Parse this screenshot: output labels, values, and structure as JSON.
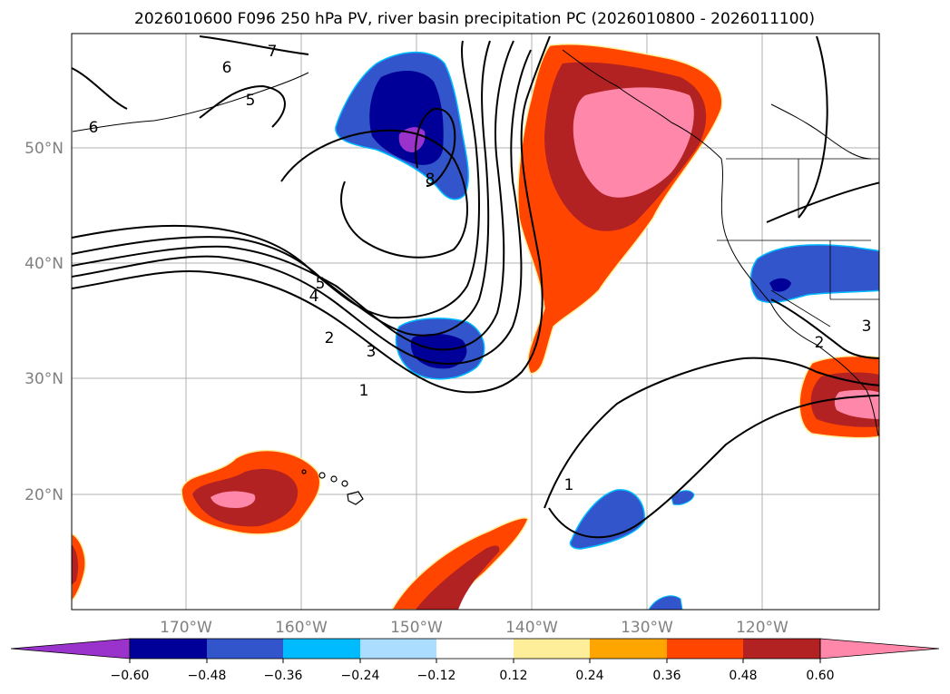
{
  "title": "2026010600 F096 250 hPa PV, river basin precipitation PC (2026010800 - 2026011100)",
  "lat_labels": [
    "50°N",
    "40°N",
    "30°N",
    "20°N"
  ],
  "lon_labels": [
    "170°W",
    "160°W",
    "150°W",
    "140°W",
    "130°W",
    "120°W"
  ],
  "colorbar": {
    "colors": [
      "#9933cc",
      "#000099",
      "#3355cc",
      "#00bbff",
      "#aaddff",
      "#ffffff",
      "#ffee99",
      "#ffa500",
      "#ff4500",
      "#b22222",
      "#ff88aa"
    ],
    "ticks": [
      "−0.60",
      "−0.48",
      "−0.36",
      "−0.24",
      "−0.12",
      "0.12",
      "0.24",
      "0.36",
      "0.48",
      "0.60"
    ]
  },
  "contour_labels": [
    "7",
    "6",
    "6",
    "5",
    "8",
    "5",
    "4",
    "2",
    "3",
    "1",
    "1",
    "3",
    "2"
  ],
  "colors": {
    "land_outline": "#000000",
    "grid": "#b0b0b0",
    "pos_low": "#ff4500",
    "pos_mid": "#b22222",
    "pos_high": "#ff88aa",
    "neg_low": "#3355cc",
    "neg_mid": "#000099",
    "neg_high": "#9933cc"
  }
}
